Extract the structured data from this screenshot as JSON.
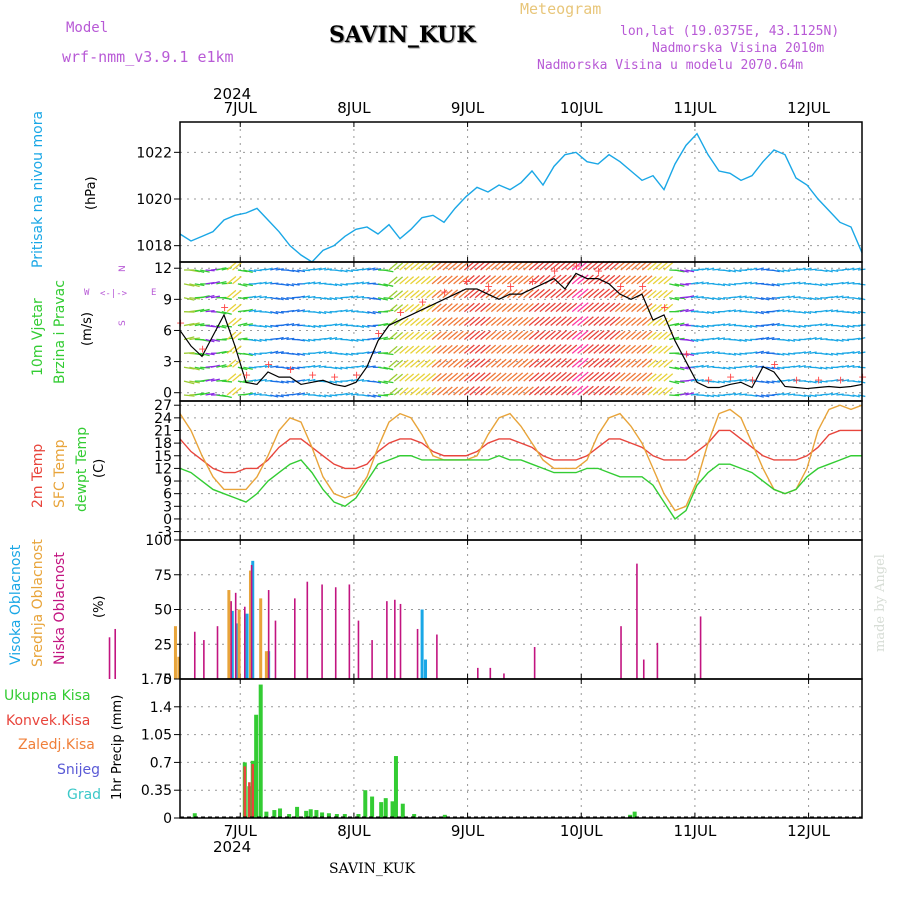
{
  "header": {
    "model_label": "Model",
    "model_name": "wrf-nmm_v3.9.1  e1km",
    "station": "SAVIN_KUK",
    "meteogram_label": "Meteogram",
    "lonlat": "lon,lat (19.0375E, 43.1125N)",
    "elevation": "Nadmorska Visina 2010m",
    "model_elevation": "Nadmorska Visina u modelu 2070.64m",
    "year_top": "2024",
    "year_bottom": "2024",
    "footer": "SAVIN_KUK",
    "watermark": "made by Angel"
  },
  "colors": {
    "pressure": "#1aa7e6",
    "temp2m": "#e8453c",
    "sfc": "#e8a43a",
    "dewpt": "#33cc33",
    "high_cloud": "#1aa7e6",
    "mid_cloud": "#e8a43a",
    "low_cloud": "#c21480",
    "precip_total": "#33cc33",
    "precip_conv": "#e8453c",
    "model": "#b85ad6"
  },
  "axis_labels": {
    "pressure": [
      "Pritisak na nivou mora",
      "(hPa)"
    ],
    "wind": [
      "10m Vjetar",
      "Brzina i Pravac",
      "(m/s)"
    ],
    "wind_compass": [
      "W",
      "N",
      "E",
      "S"
    ],
    "temp": [
      "2m Temp",
      "SFC Temp",
      "dewpt Temp",
      "(C)"
    ],
    "cloud": [
      "Visoka Oblacnost",
      "Srednja Oblacnost",
      "Niska Oblacnost",
      "(%)"
    ],
    "precip": [
      "Ukupna Kisa",
      "Konvek.Kisa",
      "Zaledj.Kisa",
      "Snijeg",
      "Grad",
      "1hr Precip (mm)"
    ]
  },
  "chart_data": [
    {
      "type": "line",
      "panel": "pressure",
      "x_ticks": [
        "7JUL",
        "8JUL",
        "9JUL",
        "10JUL",
        "11JUL",
        "12JUL"
      ],
      "ylabel": "(hPa)",
      "yticks": [
        1018,
        1020,
        1022
      ],
      "ylim": [
        1017.3,
        1023.3
      ],
      "grid": true,
      "series": [
        {
          "values": [
            1018.5,
            1018.2,
            1018.4,
            1018.6,
            1019.1,
            1019.3,
            1019.4,
            1019.6,
            1019.1,
            1018.6,
            1018.0,
            1017.6,
            1017.3,
            1017.8,
            1018.0,
            1018.4,
            1018.7,
            1018.8,
            1018.5,
            1018.9,
            1018.3,
            1018.7,
            1019.2,
            1019.3,
            1019.0,
            1019.6,
            1020.1,
            1020.5,
            1020.3,
            1020.6,
            1020.4,
            1020.7,
            1021.2,
            1020.6,
            1021.4,
            1021.9,
            1022.0,
            1021.6,
            1021.5,
            1021.9,
            1021.6,
            1021.2,
            1020.8,
            1021.0,
            1020.4,
            1021.5,
            1022.3,
            1022.8,
            1021.9,
            1021.2,
            1021.1,
            1020.8,
            1021.0,
            1021.6,
            1022.1,
            1021.9,
            1020.9,
            1020.6,
            1020.0,
            1019.5,
            1019.0,
            1018.8,
            1017.7
          ]
        }
      ]
    },
    {
      "type": "line",
      "panel": "wind",
      "ylabel": "(m/s)",
      "yticks": [
        0,
        3,
        6,
        9,
        12
      ],
      "ylim": [
        -0.8,
        12.6
      ],
      "grid": true,
      "series": [
        {
          "name": "speed",
          "values": [
            6.0,
            4.5,
            3.5,
            5.5,
            7.5,
            4.5,
            1.0,
            0.8,
            2.0,
            1.5,
            1.5,
            0.8,
            1.0,
            1.2,
            0.8,
            0.6,
            1.0,
            2.5,
            5.0,
            6.5,
            7.0,
            7.5,
            8.0,
            8.5,
            9.0,
            9.5,
            10.0,
            10.0,
            9.5,
            9.0,
            9.5,
            9.5,
            10.0,
            10.5,
            11.0,
            10.0,
            11.5,
            11.0,
            11.0,
            10.5,
            9.5,
            9.0,
            9.5,
            7.0,
            7.5,
            5.0,
            3.0,
            1.0,
            0.5,
            0.5,
            0.8,
            1.0,
            0.5,
            2.5,
            2.0,
            0.6,
            0.5,
            0.4,
            0.5,
            0.6,
            0.5,
            0.6,
            0.8
          ]
        }
      ]
    },
    {
      "type": "line",
      "panel": "temperature",
      "ylabel": "(C)",
      "yticks": [
        -3,
        0,
        3,
        6,
        9,
        12,
        15,
        18,
        21,
        24,
        27
      ],
      "ylim": [
        -5,
        28
      ],
      "grid": true,
      "series": [
        {
          "name": "2m Temp",
          "values": [
            19,
            16,
            14,
            12,
            11,
            11,
            12,
            12,
            14,
            17,
            19,
            19,
            17,
            15,
            13,
            12,
            12,
            13,
            16,
            18,
            19,
            19,
            18,
            16,
            15,
            15,
            15,
            16,
            18,
            19,
            19,
            18,
            17,
            15,
            14,
            14,
            14,
            15,
            17,
            19,
            19,
            18,
            17,
            15,
            14,
            14,
            14,
            16,
            18,
            21,
            21,
            19,
            17,
            15,
            14,
            14,
            14,
            15,
            17,
            20,
            21,
            21,
            21
          ]
        },
        {
          "name": "SFC Temp",
          "values": [
            25,
            21,
            15,
            10,
            7,
            7,
            7,
            10,
            15,
            21,
            24,
            23,
            17,
            10,
            6,
            5,
            6,
            10,
            17,
            23,
            25,
            24,
            20,
            15,
            14,
            14,
            14,
            15,
            20,
            24,
            25,
            22,
            18,
            14,
            12,
            12,
            12,
            14,
            20,
            24,
            25,
            22,
            18,
            12,
            6,
            2,
            3,
            9,
            18,
            25,
            26,
            24,
            18,
            12,
            7,
            6,
            7,
            12,
            21,
            26,
            27,
            26,
            27
          ]
        },
        {
          "name": "dewpt Temp",
          "values": [
            12,
            11,
            9,
            7,
            6,
            5,
            4,
            6,
            9,
            11,
            13,
            14,
            11,
            7,
            4,
            3,
            5,
            9,
            13,
            14,
            15,
            15,
            14,
            14,
            14,
            14,
            14,
            14,
            14,
            15,
            14,
            14,
            13,
            12,
            11,
            11,
            11,
            12,
            12,
            11,
            10,
            10,
            10,
            8,
            4,
            0,
            2,
            8,
            11,
            13,
            13,
            12,
            11,
            9,
            7,
            6,
            7,
            10,
            12,
            13,
            14,
            15,
            15
          ]
        }
      ]
    },
    {
      "type": "bar",
      "panel": "clouds",
      "ylabel": "(%)",
      "yticks": [
        0,
        25,
        50,
        75,
        100
      ],
      "ylim": [
        0,
        100
      ],
      "grid": true,
      "series": [
        {
          "name": "Visoka Oblacnost",
          "points": [
            [
              6.93,
              49
            ],
            [
              6.97,
              40
            ],
            [
              7.06,
              47
            ],
            [
              7.11,
              85
            ],
            [
              7.25,
              20
            ],
            [
              8.6,
              50
            ],
            [
              8.63,
              14
            ]
          ]
        },
        {
          "name": "Srednja Oblacnost",
          "points": [
            [
              6.43,
              38
            ],
            [
              6.46,
              16
            ],
            [
              6.9,
              64
            ],
            [
              6.99,
              50
            ],
            [
              7.09,
              78
            ],
            [
              7.18,
              58
            ],
            [
              7.23,
              20
            ]
          ]
        },
        {
          "name": "Niska Oblacnost",
          "points": [
            [
              5.85,
              30
            ],
            [
              5.9,
              36
            ],
            [
              6.6,
              34
            ],
            [
              6.68,
              28
            ],
            [
              6.8,
              38
            ],
            [
              6.92,
              56
            ],
            [
              6.96,
              62
            ],
            [
              7.04,
              52
            ],
            [
              7.1,
              82
            ],
            [
              7.25,
              64
            ],
            [
              7.31,
              42
            ],
            [
              7.48,
              58
            ],
            [
              7.59,
              70
            ],
            [
              7.72,
              68
            ],
            [
              7.84,
              66
            ],
            [
              7.96,
              68
            ],
            [
              8.04,
              42
            ],
            [
              8.16,
              28
            ],
            [
              8.29,
              56
            ],
            [
              8.36,
              57
            ],
            [
              8.41,
              54
            ],
            [
              8.56,
              36
            ],
            [
              8.73,
              32
            ],
            [
              9.09,
              8
            ],
            [
              9.2,
              8
            ],
            [
              9.32,
              4
            ],
            [
              9.59,
              23
            ],
            [
              10.35,
              38
            ],
            [
              10.49,
              83
            ],
            [
              10.55,
              14
            ],
            [
              10.67,
              26
            ],
            [
              11.05,
              45
            ]
          ]
        }
      ]
    },
    {
      "type": "bar",
      "panel": "precipitation",
      "ylabel": "1hr Precip (mm)",
      "yticks": [
        0,
        0.35,
        0.7,
        1.05,
        1.4,
        1.75
      ],
      "ylim": [
        0,
        1.75
      ],
      "grid": true,
      "series": [
        {
          "name": "Ukupna Kisa",
          "points": [
            [
              6.6,
              0.06
            ],
            [
              7.04,
              0.7
            ],
            [
              7.08,
              0.4
            ],
            [
              7.11,
              0.72
            ],
            [
              7.14,
              1.3
            ],
            [
              7.18,
              1.68
            ],
            [
              7.23,
              0.08
            ],
            [
              7.3,
              0.1
            ],
            [
              7.35,
              0.12
            ],
            [
              7.43,
              0.05
            ],
            [
              7.5,
              0.14
            ],
            [
              7.58,
              0.09
            ],
            [
              7.62,
              0.11
            ],
            [
              7.67,
              0.1
            ],
            [
              7.72,
              0.07
            ],
            [
              7.78,
              0.06
            ],
            [
              7.85,
              0.05
            ],
            [
              7.92,
              0.05
            ],
            [
              8.04,
              0.05
            ],
            [
              8.1,
              0.35
            ],
            [
              8.16,
              0.27
            ],
            [
              8.24,
              0.2
            ],
            [
              8.28,
              0.25
            ],
            [
              8.34,
              0.21
            ],
            [
              8.37,
              0.78
            ],
            [
              8.43,
              0.18
            ],
            [
              8.53,
              0.05
            ],
            [
              8.8,
              0.04
            ],
            [
              10.43,
              0.04
            ],
            [
              10.47,
              0.08
            ]
          ]
        },
        {
          "name": "Konvek.Kisa",
          "points": [
            [
              7.04,
              0.65
            ],
            [
              7.08,
              0.45
            ],
            [
              7.11,
              0.68
            ]
          ]
        }
      ]
    }
  ]
}
